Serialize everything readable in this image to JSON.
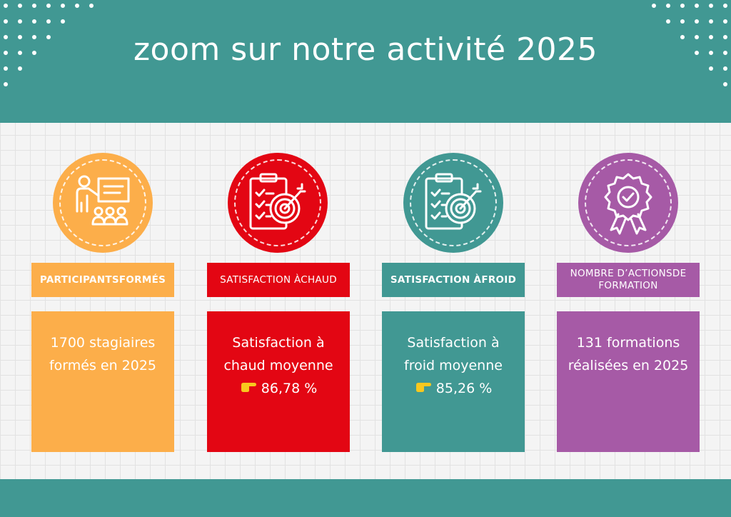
{
  "header": {
    "title": "zoom sur notre activité 2025"
  },
  "colors": {
    "teal": "#419893",
    "orange": "#fcae4a",
    "red": "#e30613",
    "purple": "#a65aa6"
  },
  "cards": [
    {
      "label_lines": [
        "PARTICIPANTS",
        "FORMÉS"
      ],
      "text_lines": [
        "1700 stagiaires",
        "formés en 2025"
      ],
      "icon": "teacher-presentation-icon"
    },
    {
      "label_lines": [
        "SATISFACTION À",
        "CHAUD"
      ],
      "text_lines": [
        "Satisfaction à",
        "chaud moyenne"
      ],
      "value": "86,78 %",
      "icon": "clipboard-target-icon"
    },
    {
      "label_lines": [
        "SATISFACTION À",
        "FROID"
      ],
      "text_lines": [
        "Satisfaction à",
        "froid moyenne"
      ],
      "value": "85,26 %",
      "icon": "clipboard-target-icon"
    },
    {
      "label_lines": [
        "NOMBRE D’ACTIONS",
        "DE FORMATION"
      ],
      "text_lines": [
        "131 formations",
        "réalisées en 2025"
      ],
      "icon": "award-badge-icon"
    }
  ]
}
